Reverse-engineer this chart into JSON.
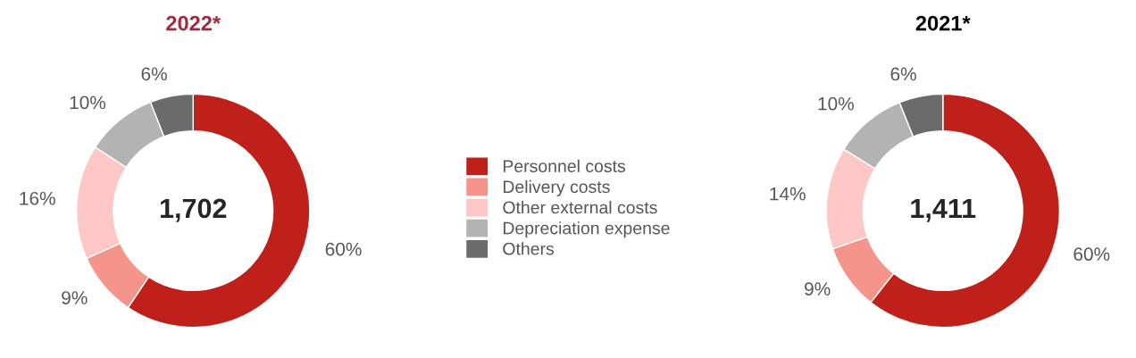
{
  "chart_data": [
    {
      "type": "donut",
      "title": "2022*",
      "categories": [
        "Personnel costs",
        "Delivery costs",
        "Other external costs",
        "Depreciation expense",
        "Others"
      ],
      "values": [
        60,
        9,
        16,
        10,
        6
      ],
      "value_labels": [
        "60%",
        "9%",
        "16%",
        "10%",
        "6%"
      ],
      "colors": [
        "#c0201a",
        "#f4948a",
        "#fcc7c5",
        "#b3b3b3",
        "#6b6b6b"
      ],
      "annotations": [
        "1,702"
      ],
      "legend": "right"
    },
    {
      "type": "donut",
      "title": "2021*",
      "categories": [
        null,
        null,
        null,
        null,
        null
      ],
      "values": [
        60,
        9,
        14,
        10,
        6
      ],
      "value_labels": [
        "60%",
        "9%",
        "14%",
        "10%",
        "6%"
      ],
      "colors": [
        "#c0201a",
        "#f4948a",
        "#fcc7c5",
        "#b3b3b3",
        "#6b6b6b"
      ],
      "annotations": [
        "1,411"
      ]
    }
  ]
}
